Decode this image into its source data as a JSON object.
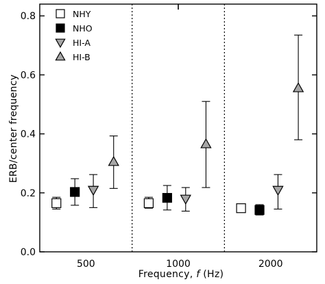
{
  "chart_data": {
    "type": "scatter",
    "title": "",
    "xlabel_parts": {
      "pre": "Frequency, ",
      "var": "f",
      "post": " (Hz)"
    },
    "ylabel": "ERB/center frequency",
    "ylim": [
      0,
      0.84
    ],
    "yticks": [
      0.0,
      0.2,
      0.4,
      0.6,
      0.8
    ],
    "ytick_labels": [
      "0.0",
      "0.2",
      "0.4",
      "0.6",
      "0.8"
    ],
    "categories": [
      "500",
      "1000",
      "2000"
    ],
    "grid": false,
    "group_separators": "dotted vertical lines between frequency groups",
    "legend_position": "top-left",
    "series": [
      {
        "name": "NHY",
        "marker": "square",
        "fill": "#ffffff",
        "values": [
          0.165,
          0.165,
          0.148
        ],
        "err_low": [
          0.145,
          0.148,
          0.135
        ],
        "err_high": [
          0.185,
          0.185,
          0.162
        ]
      },
      {
        "name": "NHO",
        "marker": "square",
        "fill": "#000000",
        "values": [
          0.203,
          0.183,
          0.142
        ],
        "err_low": [
          0.158,
          0.142,
          0.125
        ],
        "err_high": [
          0.248,
          0.225,
          0.16
        ]
      },
      {
        "name": "HI-A",
        "marker": "triangle-down",
        "fill": "#a6a6a6",
        "values": [
          0.21,
          0.18,
          0.21
        ],
        "err_low": [
          0.15,
          0.138,
          0.145
        ],
        "err_high": [
          0.262,
          0.218,
          0.262
        ]
      },
      {
        "name": "HI-B",
        "marker": "triangle-up",
        "fill": "#a6a6a6",
        "values": [
          0.305,
          0.365,
          0.555
        ],
        "err_low": [
          0.215,
          0.218,
          0.38
        ],
        "err_high": [
          0.393,
          0.51,
          0.735
        ]
      }
    ]
  }
}
